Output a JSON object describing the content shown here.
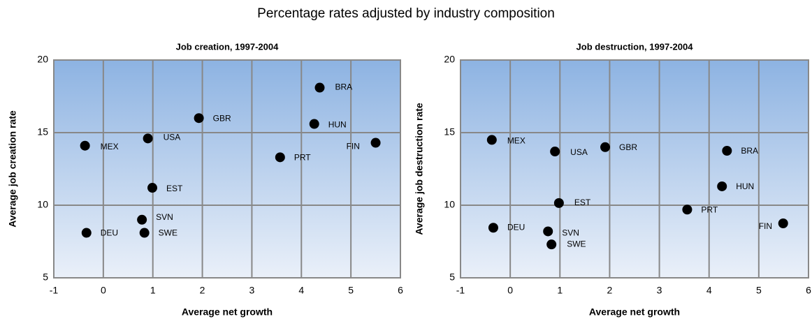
{
  "title": "Percentage rates adjusted by industry composition",
  "chart_data": [
    {
      "type": "scatter",
      "title": "Job creation, 1997-2004",
      "x_label": "Average net growth",
      "y_label": "Average job creation rate",
      "xlim": [
        -1,
        6
      ],
      "xticks": [
        -1,
        0,
        1,
        2,
        3,
        4,
        5,
        6
      ],
      "ylim": [
        5,
        20
      ],
      "yticks": [
        5,
        10,
        15,
        20
      ],
      "grid": true,
      "color": "#000000",
      "point_labels": [
        "MEX",
        "USA",
        "GBR",
        "BRA",
        "HUN",
        "FIN",
        "PRT",
        "EST",
        "SVN",
        "SWE",
        "DEU"
      ],
      "x": [
        -0.37,
        0.9,
        1.93,
        4.37,
        4.26,
        5.5,
        3.57,
        0.99,
        0.78,
        0.83,
        -0.34
      ],
      "values": [
        14.1,
        14.6,
        16.0,
        18.1,
        15.6,
        14.3,
        13.3,
        11.2,
        9.0,
        8.1,
        8.1
      ]
    },
    {
      "type": "scatter",
      "title": "Job destruction, 1997-2004",
      "x_label": "Average net growth",
      "y_label": "Average job destruction rate",
      "xlim": [
        -1,
        6
      ],
      "xticks": [
        -1,
        0,
        1,
        2,
        3,
        4,
        5,
        6
      ],
      "ylim": [
        5,
        20
      ],
      "yticks": [
        5,
        10,
        15,
        20
      ],
      "grid": true,
      "color": "#000000",
      "point_labels": [
        "MEX",
        "USA",
        "GBR",
        "BRA",
        "HUN",
        "FIN",
        "PRT",
        "EST",
        "SVN",
        "SWE",
        "DEU"
      ],
      "x": [
        -0.37,
        0.9,
        1.91,
        4.36,
        4.26,
        5.49,
        3.56,
        0.98,
        0.76,
        0.83,
        -0.34
      ],
      "values": [
        14.5,
        13.7,
        14.0,
        13.75,
        11.3,
        8.75,
        9.7,
        10.15,
        8.2,
        7.3,
        8.45
      ]
    }
  ]
}
